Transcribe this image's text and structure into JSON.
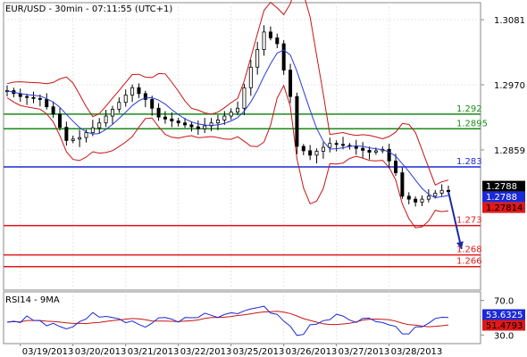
{
  "chart_data": {
    "type": "candlestick",
    "title": "EUR/USD - 30min - 07:11:55 (UTC+1)",
    "y_ticks": [
      "1.3081",
      "1.2970",
      "1.2859"
    ],
    "ylim": [
      1.262,
      1.311
    ],
    "x_labels": [
      "03/19/2013",
      "03/20/2013",
      "03/21/2013",
      "03/22/2013",
      "03/25/2013",
      "03/26/2013",
      "03/27/2013",
      "03/28/2013"
    ],
    "levels": [
      {
        "value": 1.292,
        "label": "1.292",
        "color": "#1a8a1a"
      },
      {
        "value": 1.2895,
        "label": "1.2895",
        "color": "#1a8a1a"
      },
      {
        "value": 1.283,
        "label": "1.283",
        "color": "#1a2ad6"
      },
      {
        "value": 1.273,
        "label": "1.273",
        "color": "#e01818"
      },
      {
        "value": 1.268,
        "label": "1.268",
        "color": "#e01818"
      },
      {
        "value": 1.266,
        "label": "1.266",
        "color": "#e01818"
      }
    ],
    "price_tags": [
      {
        "value": 1.2788,
        "text": "1.2788",
        "bg": "#000000",
        "fg": "#ffffff"
      },
      {
        "value": 1.2788,
        "text": "1.2788",
        "bg": "#1a2ad6",
        "fg": "#ffffff"
      },
      {
        "value": 1.27814,
        "text": "1.27814",
        "bg": "#e01818",
        "fg": "#000000"
      }
    ],
    "price_path": [
      [
        0,
        1.296
      ],
      [
        2,
        1.295
      ],
      [
        5,
        1.2945
      ],
      [
        7,
        1.292
      ],
      [
        9,
        1.2875
      ],
      [
        11,
        1.288
      ],
      [
        14,
        1.2905
      ],
      [
        17,
        1.294
      ],
      [
        19,
        1.2965
      ],
      [
        21,
        1.2945
      ],
      [
        23,
        1.2915
      ],
      [
        26,
        1.2905
      ],
      [
        29,
        1.2895
      ],
      [
        32,
        1.291
      ],
      [
        35,
        1.293
      ],
      [
        37,
        1.3
      ],
      [
        39,
        1.306
      ],
      [
        41,
        1.304
      ],
      [
        43,
        1.295
      ],
      [
        44,
        1.2865
      ],
      [
        46,
        1.285
      ],
      [
        49,
        1.287
      ],
      [
        52,
        1.2865
      ],
      [
        55,
        1.2855
      ],
      [
        57,
        1.286
      ],
      [
        59,
        1.282
      ],
      [
        60,
        1.278
      ],
      [
        62,
        1.277
      ],
      [
        64,
        1.278
      ],
      [
        66,
        1.279
      ],
      [
        67,
        1.2788
      ]
    ],
    "arrow": {
      "from": [
        67,
        1.2788
      ],
      "to": [
        69,
        1.269
      ]
    },
    "rsi": {
      "label": "RSI14 - 9MA",
      "y_ticks": [
        "70.0",
        "30.0"
      ],
      "ylim": [
        20,
        80
      ],
      "tags": [
        {
          "value": 53.6325,
          "text": "53.6325",
          "bg": "#1a2ad6",
          "fg": "#ffffff"
        },
        {
          "value": 51.4793,
          "text": "51.4793",
          "bg": "#e01818",
          "fg": "#000000"
        }
      ],
      "path": [
        [
          0,
          45
        ],
        [
          3,
          50
        ],
        [
          6,
          42
        ],
        [
          9,
          36
        ],
        [
          12,
          52
        ],
        [
          15,
          55
        ],
        [
          18,
          48
        ],
        [
          21,
          40
        ],
        [
          24,
          50
        ],
        [
          27,
          47
        ],
        [
          30,
          52
        ],
        [
          33,
          50
        ],
        [
          36,
          58
        ],
        [
          39,
          60
        ],
        [
          42,
          45
        ],
        [
          44,
          30
        ],
        [
          47,
          42
        ],
        [
          50,
          52
        ],
        [
          53,
          45
        ],
        [
          56,
          49
        ],
        [
          58,
          42
        ],
        [
          60,
          30
        ],
        [
          62,
          38
        ],
        [
          64,
          46
        ],
        [
          66,
          52
        ],
        [
          67,
          54
        ]
      ]
    },
    "colors": {
      "candle": "#000000",
      "bollinger": "#c81414",
      "moving_average": "#2a3ad6",
      "rsi": "#1a2ad6",
      "rsi_ma": "#c81414"
    }
  }
}
